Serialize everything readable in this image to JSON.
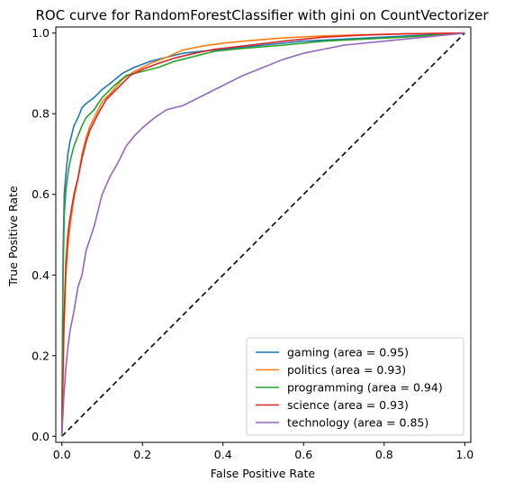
{
  "chart_data": {
    "type": "line",
    "title": "ROC curve for RandomForestClassifier with gini on CountVectorizer",
    "xlabel": "False Positive Rate",
    "ylabel": "True Positive Rate",
    "xlim": [
      -0.015,
      1.015
    ],
    "ylim": [
      -0.015,
      1.015
    ],
    "xticks": [
      0.0,
      0.2,
      0.4,
      0.6,
      0.8,
      1.0
    ],
    "yticks": [
      0.0,
      0.2,
      0.4,
      0.6,
      0.8,
      1.0
    ],
    "xtick_labels": [
      "0.0",
      "0.2",
      "0.4",
      "0.6",
      "0.8",
      "1.0"
    ],
    "ytick_labels": [
      "0.0",
      "0.2",
      "0.4",
      "0.6",
      "0.8",
      "1.0"
    ],
    "grid": false,
    "legend_position": "lower-right",
    "diagonal": {
      "x": [
        0,
        1
      ],
      "y": [
        0,
        1
      ],
      "color": "#000000",
      "style": "dashed"
    },
    "series": [
      {
        "name": "gaming (area = 0.95)",
        "color": "#1f77b4",
        "x": [
          0,
          0.003,
          0.006,
          0.01,
          0.015,
          0.02,
          0.03,
          0.04,
          0.05,
          0.06,
          0.08,
          0.1,
          0.12,
          0.15,
          0.18,
          0.22,
          0.26,
          0.3,
          0.35,
          0.4,
          0.5,
          0.6,
          0.7,
          0.8,
          0.9,
          1.0
        ],
        "y": [
          0,
          0.45,
          0.6,
          0.65,
          0.7,
          0.73,
          0.77,
          0.79,
          0.815,
          0.825,
          0.84,
          0.86,
          0.875,
          0.9,
          0.915,
          0.93,
          0.94,
          0.95,
          0.955,
          0.96,
          0.97,
          0.98,
          0.985,
          0.99,
          0.995,
          1.0
        ]
      },
      {
        "name": "politics (area = 0.93)",
        "color": "#ff7f0e",
        "x": [
          0,
          0.005,
          0.01,
          0.015,
          0.02,
          0.03,
          0.04,
          0.05,
          0.06,
          0.07,
          0.08,
          0.1,
          0.12,
          0.15,
          0.18,
          0.22,
          0.26,
          0.3,
          0.35,
          0.4,
          0.45,
          0.55,
          0.65,
          0.75,
          0.85,
          1.0
        ],
        "y": [
          0,
          0.25,
          0.4,
          0.47,
          0.52,
          0.59,
          0.64,
          0.7,
          0.74,
          0.77,
          0.79,
          0.83,
          0.85,
          0.885,
          0.905,
          0.925,
          0.94,
          0.958,
          0.968,
          0.975,
          0.98,
          0.988,
          0.993,
          0.996,
          0.998,
          1.0
        ]
      },
      {
        "name": "programming (area = 0.94)",
        "color": "#2ca02c",
        "x": [
          0,
          0.003,
          0.006,
          0.01,
          0.015,
          0.02,
          0.03,
          0.04,
          0.05,
          0.06,
          0.08,
          0.1,
          0.13,
          0.16,
          0.2,
          0.24,
          0.28,
          0.32,
          0.38,
          0.45,
          0.55,
          0.65,
          0.75,
          0.85,
          1.0
        ],
        "y": [
          0,
          0.4,
          0.55,
          0.61,
          0.65,
          0.68,
          0.72,
          0.745,
          0.77,
          0.79,
          0.81,
          0.84,
          0.87,
          0.895,
          0.905,
          0.915,
          0.93,
          0.94,
          0.955,
          0.962,
          0.97,
          0.98,
          0.985,
          0.99,
          1.0
        ]
      },
      {
        "name": "science (area = 0.93)",
        "color": "#d62728",
        "x": [
          0,
          0.005,
          0.01,
          0.015,
          0.02,
          0.03,
          0.04,
          0.05,
          0.06,
          0.07,
          0.09,
          0.11,
          0.14,
          0.17,
          0.2,
          0.24,
          0.28,
          0.33,
          0.38,
          0.45,
          0.55,
          0.65,
          0.75,
          0.85,
          1.0
        ],
        "y": [
          0,
          0.28,
          0.43,
          0.5,
          0.54,
          0.6,
          0.64,
          0.69,
          0.73,
          0.76,
          0.8,
          0.835,
          0.865,
          0.895,
          0.91,
          0.925,
          0.938,
          0.95,
          0.96,
          0.968,
          0.98,
          0.99,
          0.995,
          0.998,
          1.0
        ]
      },
      {
        "name": "technology (area = 0.85)",
        "color": "#9467bd",
        "x": [
          0,
          0.005,
          0.01,
          0.015,
          0.02,
          0.03,
          0.04,
          0.05,
          0.06,
          0.07,
          0.08,
          0.09,
          0.1,
          0.12,
          0.14,
          0.16,
          0.18,
          0.2,
          0.23,
          0.26,
          0.3,
          0.33,
          0.36,
          0.4,
          0.45,
          0.5,
          0.55,
          0.6,
          0.65,
          0.7,
          0.8,
          0.9,
          1.0
        ],
        "y": [
          0,
          0.1,
          0.17,
          0.22,
          0.26,
          0.31,
          0.37,
          0.4,
          0.46,
          0.49,
          0.52,
          0.56,
          0.6,
          0.645,
          0.68,
          0.72,
          0.745,
          0.765,
          0.79,
          0.81,
          0.82,
          0.835,
          0.85,
          0.87,
          0.895,
          0.915,
          0.935,
          0.95,
          0.96,
          0.97,
          0.98,
          0.99,
          1.0
        ]
      }
    ]
  }
}
